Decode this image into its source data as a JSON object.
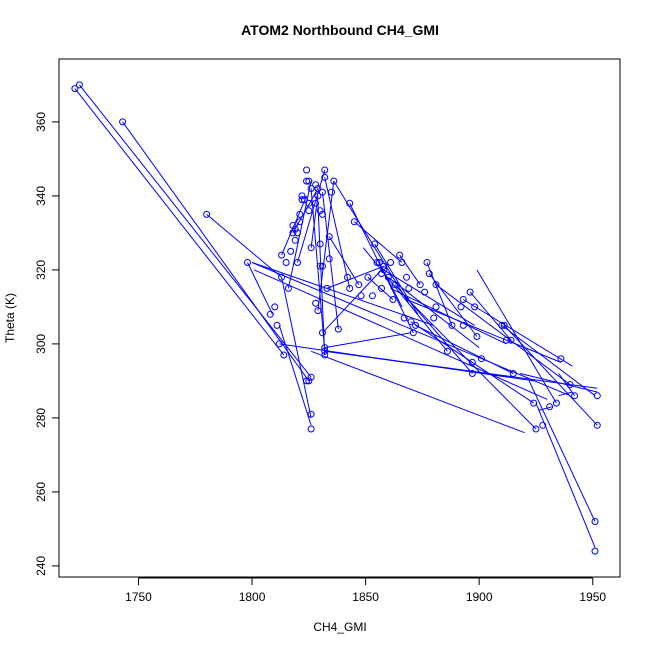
{
  "chart_data": {
    "type": "scatter",
    "title": "ATOM2 Northbound CH4_GMI",
    "xlabel": "CH4_GMI",
    "ylabel": "Theta (K)",
    "xlim": [
      1715,
      1962
    ],
    "ylim": [
      237,
      377
    ],
    "xticks": [
      1750,
      1800,
      1850,
      1900,
      1950
    ],
    "yticks": [
      240,
      260,
      280,
      300,
      320,
      340,
      360
    ],
    "grid": false,
    "legend": "none",
    "colors": {
      "series": "#0000ff",
      "axis": "#000000",
      "background": "#ffffff"
    },
    "series": [
      {
        "marker": "open-circle",
        "points": [
          [
            1722,
            369
          ],
          [
            1724,
            370
          ],
          [
            1743,
            360
          ],
          [
            1780,
            335
          ],
          [
            1798,
            322
          ],
          [
            1808,
            308
          ],
          [
            1810,
            310
          ],
          [
            1811,
            305
          ],
          [
            1812,
            300
          ],
          [
            1813,
            318
          ],
          [
            1813,
            324
          ],
          [
            1814,
            297
          ],
          [
            1815,
            322
          ],
          [
            1816,
            315
          ],
          [
            1817,
            325
          ],
          [
            1818,
            330
          ],
          [
            1818,
            332
          ],
          [
            1819,
            328
          ],
          [
            1819,
            331
          ],
          [
            1820,
            330
          ],
          [
            1820,
            322
          ],
          [
            1821,
            335
          ],
          [
            1821,
            333
          ],
          [
            1822,
            339
          ],
          [
            1822,
            340
          ],
          [
            1823,
            339
          ],
          [
            1824,
            344
          ],
          [
            1824,
            347
          ],
          [
            1825,
            338
          ],
          [
            1825,
            344
          ],
          [
            1825,
            336
          ],
          [
            1826,
            342
          ],
          [
            1826,
            326
          ],
          [
            1824,
            290
          ],
          [
            1825,
            290
          ],
          [
            1826,
            291
          ],
          [
            1826,
            281
          ],
          [
            1826,
            277
          ],
          [
            1828,
            343
          ],
          [
            1828,
            338
          ],
          [
            1828,
            311
          ],
          [
            1829,
            340
          ],
          [
            1829,
            309
          ],
          [
            1829,
            342
          ],
          [
            1830,
            321
          ],
          [
            1830,
            327
          ],
          [
            1830,
            336
          ],
          [
            1831,
            335
          ],
          [
            1831,
            341
          ],
          [
            1831,
            321
          ],
          [
            1831,
            303
          ],
          [
            1832,
            299
          ],
          [
            1832,
            298
          ],
          [
            1832,
            297
          ],
          [
            1832,
            345
          ],
          [
            1832,
            347
          ],
          [
            1833,
            315
          ],
          [
            1834,
            323
          ],
          [
            1834,
            329
          ],
          [
            1835,
            341
          ],
          [
            1836,
            344
          ],
          [
            1838,
            304
          ],
          [
            1842,
            318
          ],
          [
            1843,
            315
          ],
          [
            1843,
            338
          ],
          [
            1845,
            333
          ],
          [
            1847,
            316
          ],
          [
            1848,
            313
          ],
          [
            1851,
            318
          ],
          [
            1853,
            313
          ],
          [
            1854,
            327
          ],
          [
            1855,
            322
          ],
          [
            1856,
            322
          ],
          [
            1857,
            319
          ],
          [
            1857,
            315
          ],
          [
            1858,
            320
          ],
          [
            1858,
            321
          ],
          [
            1860,
            318
          ],
          [
            1861,
            322
          ],
          [
            1862,
            312
          ],
          [
            1863,
            316
          ],
          [
            1865,
            324
          ],
          [
            1866,
            322
          ],
          [
            1867,
            307
          ],
          [
            1868,
            318
          ],
          [
            1869,
            315
          ],
          [
            1870,
            306
          ],
          [
            1871,
            303
          ],
          [
            1872,
            305
          ],
          [
            1874,
            316
          ],
          [
            1876,
            314
          ],
          [
            1877,
            322
          ],
          [
            1878,
            319
          ],
          [
            1880,
            307
          ],
          [
            1881,
            316
          ],
          [
            1881,
            310
          ],
          [
            1886,
            298
          ],
          [
            1888,
            305
          ],
          [
            1892,
            310
          ],
          [
            1893,
            312
          ],
          [
            1893,
            305
          ],
          [
            1896,
            314
          ],
          [
            1897,
            295
          ],
          [
            1897,
            292
          ],
          [
            1898,
            310
          ],
          [
            1899,
            302
          ],
          [
            1901,
            296
          ],
          [
            1910,
            305
          ],
          [
            1911,
            305
          ],
          [
            1912,
            301
          ],
          [
            1914,
            301
          ],
          [
            1915,
            292
          ],
          [
            1924,
            284
          ],
          [
            1925,
            277
          ],
          [
            1928,
            278
          ],
          [
            1931,
            283
          ],
          [
            1934,
            284
          ],
          [
            1936,
            296
          ],
          [
            1940,
            289
          ],
          [
            1942,
            286
          ],
          [
            1951,
            252
          ],
          [
            1951,
            244
          ],
          [
            1952,
            278
          ],
          [
            1952,
            286
          ]
        ],
        "line_segments": [
          [
            [
              1724,
              370
            ],
            [
              1826,
              291
            ]
          ],
          [
            [
              1722,
              369
            ],
            [
              1814,
              297
            ]
          ],
          [
            [
              1743,
              360
            ],
            [
              1825,
              290
            ]
          ],
          [
            [
              1780,
              335
            ],
            [
              1813,
              318
            ]
          ],
          [
            [
              1798,
              322
            ],
            [
              1809,
              308
            ]
          ],
          [
            [
              1800,
              322
            ],
            [
              1880,
              305
            ]
          ],
          [
            [
              1800,
              322
            ],
            [
              1940,
              286
            ]
          ],
          [
            [
              1801,
              320
            ],
            [
              1930,
              285
            ]
          ],
          [
            [
              1826,
              298
            ],
            [
              1920,
              276
            ]
          ],
          [
            [
              1832,
              298
            ],
            [
              1952,
              288
            ]
          ],
          [
            [
              1812,
              300
            ],
            [
              1924,
              290
            ]
          ],
          [
            [
              1812,
              305
            ],
            [
              1826,
              278
            ]
          ],
          [
            [
              1813,
              318
            ],
            [
              1826,
              280
            ]
          ],
          [
            [
              1813,
              324
            ],
            [
              1824,
              340
            ]
          ],
          [
            [
              1816,
              315
            ],
            [
              1826,
              344
            ]
          ],
          [
            [
              1818,
              330
            ],
            [
              1829,
              342
            ]
          ],
          [
            [
              1820,
              322
            ],
            [
              1832,
              347
            ]
          ],
          [
            [
              1826,
              326
            ],
            [
              1829,
              340
            ]
          ],
          [
            [
              1826,
              342
            ],
            [
              1832,
              298
            ]
          ],
          [
            [
              1829,
              309
            ],
            [
              1836,
              344
            ]
          ],
          [
            [
              1829,
              338
            ],
            [
              1832,
              297
            ]
          ],
          [
            [
              1831,
              341
            ],
            [
              1838,
              304
            ]
          ],
          [
            [
              1832,
              345
            ],
            [
              1843,
              315
            ]
          ],
          [
            [
              1832,
              299
            ],
            [
              1870,
              303
            ]
          ],
          [
            [
              1831,
              303
            ],
            [
              1857,
              320
            ]
          ],
          [
            [
              1833,
              315
            ],
            [
              1858,
              321
            ]
          ],
          [
            [
              1834,
              329
            ],
            [
              1847,
              316
            ]
          ],
          [
            [
              1836,
              344
            ],
            [
              1869,
              311
            ]
          ],
          [
            [
              1843,
              338
            ],
            [
              1871,
              303
            ]
          ],
          [
            [
              1845,
              333
            ],
            [
              1866,
              322
            ]
          ],
          [
            [
              1849,
              326
            ],
            [
              1886,
              298
            ]
          ],
          [
            [
              1851,
              318
            ],
            [
              1862,
              312
            ]
          ],
          [
            [
              1854,
              327
            ],
            [
              1873,
              308
            ]
          ],
          [
            [
              1856,
              322
            ],
            [
              1866,
              310
            ]
          ],
          [
            [
              1858,
              320
            ],
            [
              1898,
              305
            ]
          ],
          [
            [
              1860,
              318
            ],
            [
              1900,
              299
            ]
          ],
          [
            [
              1861,
              315
            ],
            [
              1912,
              300
            ]
          ],
          [
            [
              1863,
              316
            ],
            [
              1897,
              292
            ]
          ],
          [
            [
              1865,
              324
            ],
            [
              1874,
              316
            ]
          ],
          [
            [
              1867,
              313
            ],
            [
              1925,
              277
            ]
          ],
          [
            [
              1868,
              312
            ],
            [
              1936,
              295
            ]
          ],
          [
            [
              1870,
              306
            ],
            [
              1924,
              284
            ]
          ],
          [
            [
              1872,
              305
            ],
            [
              1915,
              292
            ]
          ],
          [
            [
              1877,
              322
            ],
            [
              1888,
              305
            ]
          ],
          [
            [
              1878,
              319
            ],
            [
              1899,
              302
            ]
          ],
          [
            [
              1881,
              316
            ],
            [
              1940,
              289
            ]
          ],
          [
            [
              1893,
              312
            ],
            [
              1941,
              294
            ]
          ],
          [
            [
              1896,
              314
            ],
            [
              1914,
              301
            ]
          ],
          [
            [
              1899,
              320
            ],
            [
              1934,
              284
            ]
          ],
          [
            [
              1910,
              305
            ],
            [
              1951,
              286
            ]
          ],
          [
            [
              1911,
              305
            ],
            [
              1952,
              278
            ]
          ],
          [
            [
              1918,
              292
            ],
            [
              1952,
              287
            ]
          ],
          [
            [
              1922,
              290
            ],
            [
              1951,
              252
            ]
          ],
          [
            [
              1925,
              284
            ],
            [
              1951,
              245
            ]
          ],
          [
            [
              1935,
              292
            ],
            [
              1942,
              286
            ]
          ],
          [
            [
              1935,
              286
            ],
            [
              1941,
              287
            ]
          ],
          [
            [
              1926,
              282
            ],
            [
              1932,
              283
            ]
          ]
        ]
      }
    ]
  }
}
